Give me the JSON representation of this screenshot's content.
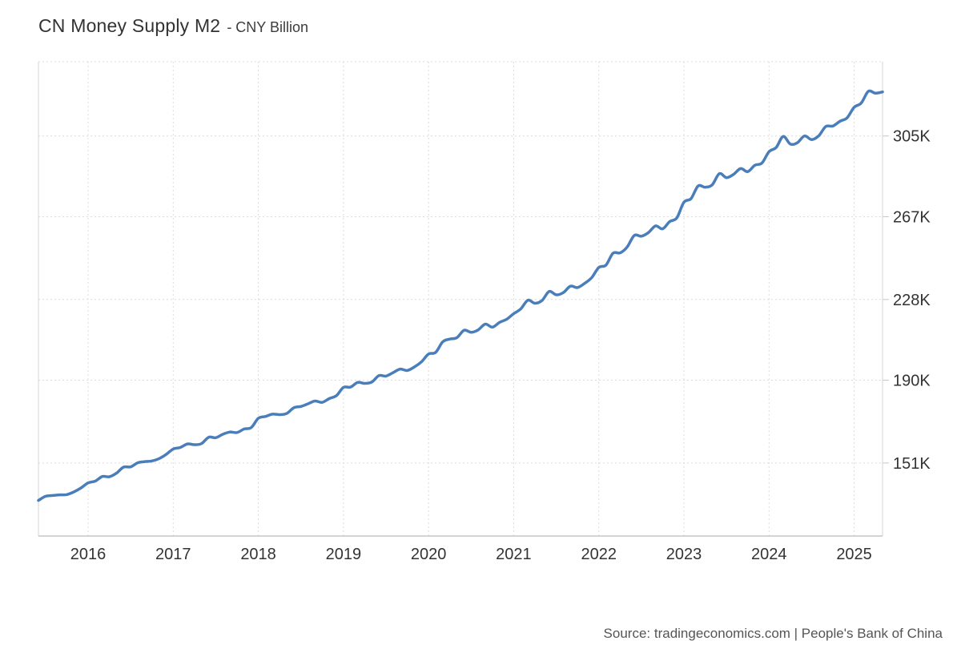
{
  "header": {
    "title": "CN Money Supply M2",
    "subtitle": "- CNY Billion"
  },
  "footer": {
    "source": "Source: tradingeconomics.com | People's Bank of China"
  },
  "chart_data": {
    "type": "line",
    "title": "CN Money Supply M2",
    "unit": "CNY Billion",
    "grid": true,
    "legend": "none",
    "line_color": "#4a7ebb",
    "grid_color": "#dcdcdc",
    "border_color": "#d4d4d4",
    "axis_line_color": "#c6c6c6",
    "tick_text_color": "#333333",
    "ylim": [
      116600,
      340000
    ],
    "y_ticks": [
      {
        "value": 151000,
        "label": "151K"
      },
      {
        "value": 190000,
        "label": "190K"
      },
      {
        "value": 228000,
        "label": "228K"
      },
      {
        "value": 267000,
        "label": "267K"
      },
      {
        "value": 305000,
        "label": "305K"
      }
    ],
    "x_ticks": [
      {
        "date": "2016-01",
        "label": "2016"
      },
      {
        "date": "2017-01",
        "label": "2017"
      },
      {
        "date": "2018-01",
        "label": "2018"
      },
      {
        "date": "2019-01",
        "label": "2019"
      },
      {
        "date": "2020-01",
        "label": "2020"
      },
      {
        "date": "2021-01",
        "label": "2021"
      },
      {
        "date": "2022-01",
        "label": "2022"
      },
      {
        "date": "2023-01",
        "label": "2023"
      },
      {
        "date": "2024-01",
        "label": "2024"
      },
      {
        "date": "2025-01",
        "label": "2025"
      }
    ],
    "x": [
      "2015-06",
      "2015-07",
      "2015-08",
      "2015-09",
      "2015-10",
      "2015-11",
      "2015-12",
      "2016-01",
      "2016-02",
      "2016-03",
      "2016-04",
      "2016-05",
      "2016-06",
      "2016-07",
      "2016-08",
      "2016-09",
      "2016-10",
      "2016-11",
      "2016-12",
      "2017-01",
      "2017-02",
      "2017-03",
      "2017-04",
      "2017-05",
      "2017-06",
      "2017-07",
      "2017-08",
      "2017-09",
      "2017-10",
      "2017-11",
      "2017-12",
      "2018-01",
      "2018-02",
      "2018-03",
      "2018-04",
      "2018-05",
      "2018-06",
      "2018-07",
      "2018-08",
      "2018-09",
      "2018-10",
      "2018-11",
      "2018-12",
      "2019-01",
      "2019-02",
      "2019-03",
      "2019-04",
      "2019-05",
      "2019-06",
      "2019-07",
      "2019-08",
      "2019-09",
      "2019-10",
      "2019-11",
      "2019-12",
      "2020-01",
      "2020-02",
      "2020-03",
      "2020-04",
      "2020-05",
      "2020-06",
      "2020-07",
      "2020-08",
      "2020-09",
      "2020-10",
      "2020-11",
      "2020-12",
      "2021-01",
      "2021-02",
      "2021-03",
      "2021-04",
      "2021-05",
      "2021-06",
      "2021-07",
      "2021-08",
      "2021-09",
      "2021-10",
      "2021-11",
      "2021-12",
      "2022-01",
      "2022-02",
      "2022-03",
      "2022-04",
      "2022-05",
      "2022-06",
      "2022-07",
      "2022-08",
      "2022-09",
      "2022-10",
      "2022-11",
      "2022-12",
      "2023-01",
      "2023-02",
      "2023-03",
      "2023-04",
      "2023-05",
      "2023-06",
      "2023-07",
      "2023-08",
      "2023-09",
      "2023-10",
      "2023-11",
      "2023-12",
      "2024-01",
      "2024-02",
      "2024-03",
      "2024-04",
      "2024-05",
      "2024-06",
      "2024-07",
      "2024-08",
      "2024-09",
      "2024-10",
      "2024-11",
      "2024-12",
      "2025-01",
      "2025-02",
      "2025-03",
      "2025-04",
      "2025-05"
    ],
    "series": [
      {
        "name": "China Money Supply M2",
        "values": [
          133340,
          135320,
          135690,
          135980,
          136100,
          137400,
          139230,
          141630,
          142460,
          144620,
          144520,
          146170,
          149050,
          149160,
          151100,
          151640,
          151950,
          153040,
          155010,
          157600,
          158290,
          159960,
          159630,
          160140,
          163130,
          162900,
          164520,
          165570,
          165340,
          167000,
          167680,
          172080,
          172910,
          173990,
          173770,
          174310,
          177020,
          177620,
          178870,
          180170,
          179560,
          181320,
          182670,
          186590,
          186740,
          188940,
          188470,
          189120,
          192140,
          191940,
          193550,
          195230,
          194560,
          196240,
          198650,
          202310,
          203080,
          208090,
          209350,
          210020,
          213490,
          212550,
          213680,
          216410,
          214970,
          217200,
          218680,
          221300,
          223600,
          227650,
          226210,
          227550,
          231780,
          230220,
          231230,
          234280,
          233620,
          235600,
          238290,
          243100,
          244150,
          249770,
          249970,
          252700,
          258150,
          257810,
          259510,
          262660,
          261290,
          264700,
          266430,
          273810,
          275520,
          281460,
          280850,
          282050,
          287300,
          285400,
          286930,
          289670,
          288230,
          291200,
          292270,
          297630,
          299560,
          304800,
          301190,
          301850,
          305020,
          303310,
          305050,
          309480,
          309710,
          311960,
          313530,
          318520,
          320520,
          326060,
          325170,
          325780
        ]
      }
    ]
  }
}
